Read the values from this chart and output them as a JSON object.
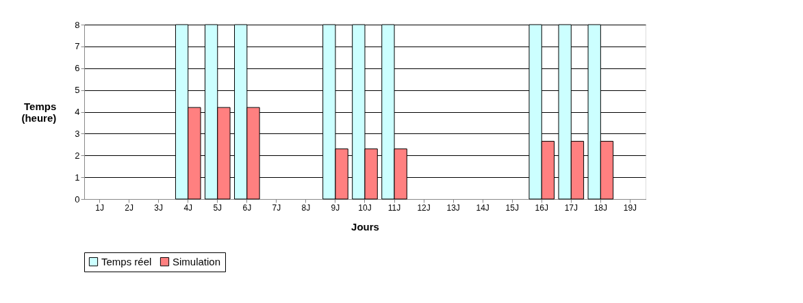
{
  "chart_data": {
    "type": "bar",
    "xlabel": "Jours",
    "ylabel": "Temps\n(heure)",
    "categories": [
      "1J",
      "2J",
      "3J",
      "4J",
      "5J",
      "6J",
      "7J",
      "8J",
      "9J",
      "10J",
      "11J",
      "12J",
      "13J",
      "14J",
      "15J",
      "16J",
      "17J",
      "18J",
      "19J"
    ],
    "series": [
      {
        "name": "Temps réel",
        "color": "#ccffff",
        "values": [
          0,
          0,
          0,
          8,
          8,
          8,
          0,
          0,
          8,
          8,
          8,
          0,
          0,
          0,
          0,
          8,
          8,
          8,
          0
        ]
      },
      {
        "name": "Simulation",
        "color": "#ff8080",
        "values": [
          0,
          0,
          0,
          4.2,
          4.2,
          4.2,
          0,
          0,
          2.3,
          2.3,
          2.3,
          0,
          0,
          0,
          0,
          2.65,
          2.65,
          2.65,
          0
        ]
      }
    ],
    "ylim": [
      0,
      8
    ],
    "yticks": [
      0,
      1,
      2,
      3,
      4,
      5,
      6,
      7,
      8
    ],
    "grid": "y",
    "legend": "bottom"
  }
}
